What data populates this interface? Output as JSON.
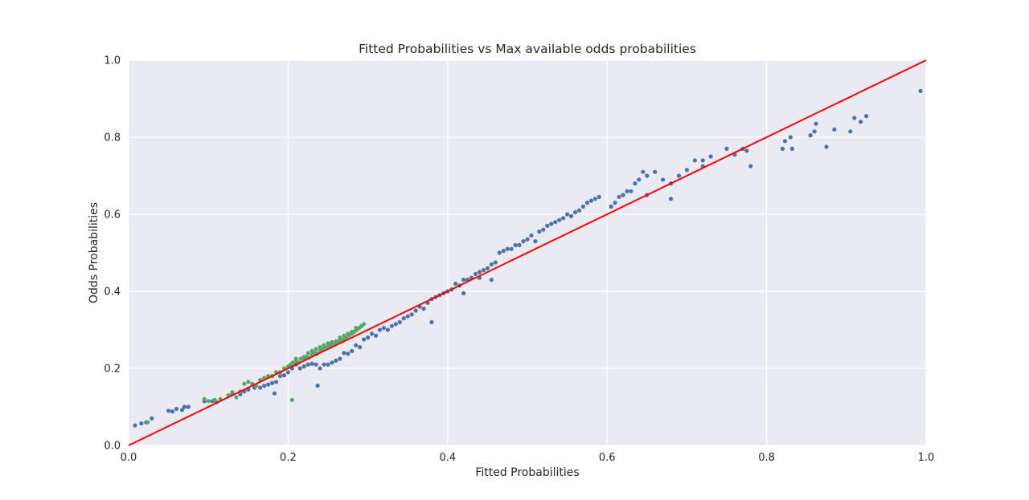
{
  "chart_data": {
    "type": "scatter",
    "title": "Fitted Probabilities vs Max available odds probabilities",
    "xlabel": "Fitted Probabilities",
    "ylabel": "Odds Probabilities",
    "xlim": [
      0.0,
      1.0
    ],
    "ylim": [
      0.0,
      1.0
    ],
    "xticks": [
      "0.0",
      "0.2",
      "0.4",
      "0.6",
      "0.8",
      "1.0"
    ],
    "yticks": [
      "0.0",
      "0.2",
      "0.4",
      "0.6",
      "0.8",
      "1.0"
    ],
    "grid": true,
    "background": "#EAEAF2",
    "reference_line": {
      "x": [
        0.0,
        1.0
      ],
      "y": [
        0.0,
        1.0
      ],
      "color": "#FF0000"
    },
    "series": [
      {
        "color": "#4C72B0",
        "points": [
          [
            0.008,
            0.052
          ],
          [
            0.016,
            0.057
          ],
          [
            0.022,
            0.06
          ],
          [
            0.029,
            0.07
          ],
          [
            0.05,
            0.09
          ],
          [
            0.055,
            0.088
          ],
          [
            0.06,
            0.095
          ],
          [
            0.067,
            0.092
          ],
          [
            0.07,
            0.1
          ],
          [
            0.075,
            0.1
          ],
          [
            0.095,
            0.115
          ],
          [
            0.105,
            0.115
          ],
          [
            0.11,
            0.112
          ],
          [
            0.13,
            0.133
          ],
          [
            0.14,
            0.133
          ],
          [
            0.145,
            0.14
          ],
          [
            0.15,
            0.145
          ],
          [
            0.158,
            0.15
          ],
          [
            0.165,
            0.15
          ],
          [
            0.17,
            0.155
          ],
          [
            0.175,
            0.158
          ],
          [
            0.18,
            0.162
          ],
          [
            0.185,
            0.165
          ],
          [
            0.19,
            0.18
          ],
          [
            0.195,
            0.182
          ],
          [
            0.2,
            0.19
          ],
          [
            0.205,
            0.2
          ],
          [
            0.21,
            0.21
          ],
          [
            0.215,
            0.2
          ],
          [
            0.22,
            0.205
          ],
          [
            0.225,
            0.21
          ],
          [
            0.23,
            0.212
          ],
          [
            0.235,
            0.21
          ],
          [
            0.24,
            0.2
          ],
          [
            0.245,
            0.21
          ],
          [
            0.25,
            0.21
          ],
          [
            0.255,
            0.215
          ],
          [
            0.26,
            0.22
          ],
          [
            0.265,
            0.225
          ],
          [
            0.27,
            0.24
          ],
          [
            0.275,
            0.238
          ],
          [
            0.28,
            0.245
          ],
          [
            0.285,
            0.26
          ],
          [
            0.29,
            0.255
          ],
          [
            0.237,
            0.155
          ],
          [
            0.183,
            0.135
          ],
          [
            0.295,
            0.275
          ],
          [
            0.3,
            0.28
          ],
          [
            0.305,
            0.29
          ],
          [
            0.31,
            0.285
          ],
          [
            0.315,
            0.3
          ],
          [
            0.32,
            0.305
          ],
          [
            0.325,
            0.3
          ],
          [
            0.33,
            0.31
          ],
          [
            0.335,
            0.315
          ],
          [
            0.34,
            0.32
          ],
          [
            0.345,
            0.33
          ],
          [
            0.35,
            0.335
          ],
          [
            0.355,
            0.34
          ],
          [
            0.36,
            0.35
          ],
          [
            0.365,
            0.36
          ],
          [
            0.37,
            0.355
          ],
          [
            0.375,
            0.37
          ],
          [
            0.38,
            0.38
          ],
          [
            0.385,
            0.385
          ],
          [
            0.39,
            0.39
          ],
          [
            0.395,
            0.395
          ],
          [
            0.4,
            0.4
          ],
          [
            0.405,
            0.405
          ],
          [
            0.41,
            0.42
          ],
          [
            0.415,
            0.415
          ],
          [
            0.42,
            0.43
          ],
          [
            0.425,
            0.43
          ],
          [
            0.43,
            0.435
          ],
          [
            0.435,
            0.445
          ],
          [
            0.44,
            0.45
          ],
          [
            0.445,
            0.455
          ],
          [
            0.45,
            0.46
          ],
          [
            0.455,
            0.47
          ],
          [
            0.46,
            0.475
          ],
          [
            0.465,
            0.5
          ],
          [
            0.47,
            0.505
          ],
          [
            0.475,
            0.51
          ],
          [
            0.48,
            0.51
          ],
          [
            0.485,
            0.52
          ],
          [
            0.49,
            0.52
          ],
          [
            0.495,
            0.53
          ],
          [
            0.5,
            0.535
          ],
          [
            0.505,
            0.545
          ],
          [
            0.51,
            0.53
          ],
          [
            0.515,
            0.555
          ],
          [
            0.52,
            0.56
          ],
          [
            0.525,
            0.57
          ],
          [
            0.53,
            0.575
          ],
          [
            0.535,
            0.58
          ],
          [
            0.54,
            0.585
          ],
          [
            0.545,
            0.59
          ],
          [
            0.55,
            0.6
          ],
          [
            0.555,
            0.595
          ],
          [
            0.56,
            0.605
          ],
          [
            0.565,
            0.61
          ],
          [
            0.57,
            0.62
          ],
          [
            0.575,
            0.63
          ],
          [
            0.58,
            0.635
          ],
          [
            0.585,
            0.64
          ],
          [
            0.59,
            0.645
          ],
          [
            0.38,
            0.32
          ],
          [
            0.42,
            0.395
          ],
          [
            0.44,
            0.435
          ],
          [
            0.455,
            0.43
          ],
          [
            0.605,
            0.62
          ],
          [
            0.61,
            0.63
          ],
          [
            0.615,
            0.645
          ],
          [
            0.62,
            0.65
          ],
          [
            0.625,
            0.66
          ],
          [
            0.63,
            0.66
          ],
          [
            0.635,
            0.68
          ],
          [
            0.64,
            0.69
          ],
          [
            0.645,
            0.71
          ],
          [
            0.65,
            0.7
          ],
          [
            0.66,
            0.71
          ],
          [
            0.67,
            0.69
          ],
          [
            0.68,
            0.68
          ],
          [
            0.69,
            0.7
          ],
          [
            0.7,
            0.715
          ],
          [
            0.71,
            0.74
          ],
          [
            0.72,
            0.74
          ],
          [
            0.73,
            0.75
          ],
          [
            0.75,
            0.77
          ],
          [
            0.76,
            0.755
          ],
          [
            0.77,
            0.77
          ],
          [
            0.775,
            0.765
          ],
          [
            0.78,
            0.725
          ],
          [
            0.68,
            0.64
          ],
          [
            0.65,
            0.65
          ],
          [
            0.72,
            0.725
          ],
          [
            0.82,
            0.77
          ],
          [
            0.823,
            0.79
          ],
          [
            0.83,
            0.8
          ],
          [
            0.832,
            0.77
          ],
          [
            0.855,
            0.805
          ],
          [
            0.86,
            0.815
          ],
          [
            0.862,
            0.835
          ],
          [
            0.875,
            0.775
          ],
          [
            0.885,
            0.82
          ],
          [
            0.905,
            0.815
          ],
          [
            0.91,
            0.85
          ],
          [
            0.918,
            0.84
          ],
          [
            0.925,
            0.855
          ],
          [
            0.993,
            0.92
          ]
        ]
      },
      {
        "color": "#55A868",
        "points": [
          [
            0.024,
            0.06
          ],
          [
            0.095,
            0.12
          ],
          [
            0.1,
            0.115
          ],
          [
            0.108,
            0.118
          ],
          [
            0.115,
            0.12
          ],
          [
            0.125,
            0.13
          ],
          [
            0.13,
            0.138
          ],
          [
            0.135,
            0.125
          ],
          [
            0.14,
            0.14
          ],
          [
            0.145,
            0.16
          ],
          [
            0.15,
            0.165
          ],
          [
            0.155,
            0.16
          ],
          [
            0.16,
            0.155
          ],
          [
            0.165,
            0.17
          ],
          [
            0.17,
            0.175
          ],
          [
            0.175,
            0.18
          ],
          [
            0.18,
            0.18
          ],
          [
            0.185,
            0.19
          ],
          [
            0.19,
            0.19
          ],
          [
            0.195,
            0.2
          ],
          [
            0.2,
            0.205
          ],
          [
            0.203,
            0.21
          ],
          [
            0.206,
            0.215
          ],
          [
            0.21,
            0.22
          ],
          [
            0.213,
            0.215
          ],
          [
            0.216,
            0.225
          ],
          [
            0.22,
            0.225
          ],
          [
            0.223,
            0.23
          ],
          [
            0.226,
            0.228
          ],
          [
            0.23,
            0.235
          ],
          [
            0.233,
            0.24
          ],
          [
            0.236,
            0.238
          ],
          [
            0.24,
            0.245
          ],
          [
            0.243,
            0.25
          ],
          [
            0.246,
            0.255
          ],
          [
            0.25,
            0.255
          ],
          [
            0.253,
            0.26
          ],
          [
            0.256,
            0.262
          ],
          [
            0.26,
            0.265
          ],
          [
            0.263,
            0.27
          ],
          [
            0.266,
            0.272
          ],
          [
            0.27,
            0.275
          ],
          [
            0.273,
            0.28
          ],
          [
            0.276,
            0.285
          ],
          [
            0.28,
            0.29
          ],
          [
            0.283,
            0.295
          ],
          [
            0.286,
            0.3
          ],
          [
            0.289,
            0.305
          ],
          [
            0.292,
            0.31
          ],
          [
            0.295,
            0.315
          ],
          [
            0.225,
            0.24
          ],
          [
            0.235,
            0.25
          ],
          [
            0.245,
            0.26
          ],
          [
            0.255,
            0.268
          ],
          [
            0.265,
            0.28
          ],
          [
            0.275,
            0.29
          ],
          [
            0.285,
            0.305
          ],
          [
            0.24,
            0.255
          ],
          [
            0.25,
            0.265
          ],
          [
            0.26,
            0.27
          ],
          [
            0.23,
            0.245
          ],
          [
            0.22,
            0.23
          ],
          [
            0.21,
            0.225
          ],
          [
            0.27,
            0.285
          ],
          [
            0.28,
            0.295
          ],
          [
            0.205,
            0.118
          ]
        ]
      }
    ]
  }
}
